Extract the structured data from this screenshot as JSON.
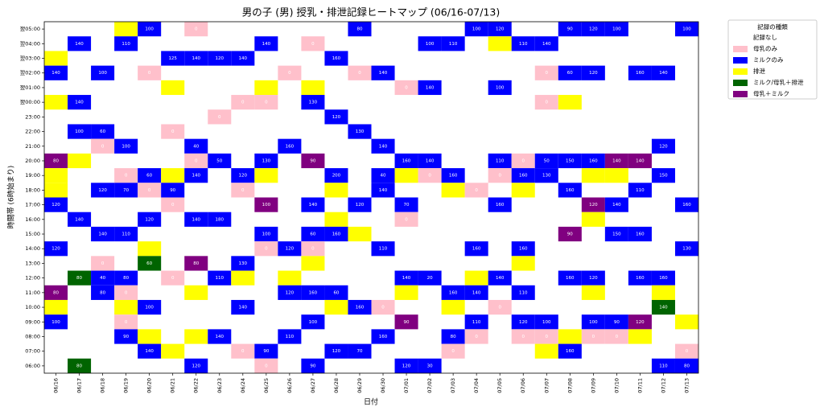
{
  "chart_data": {
    "type": "heatmap",
    "title": "男の子 (男) 授乳・排泄記録ヒートマップ (06/16-07/13)",
    "x_label": "日付",
    "y_label": "時間帯 (6時始まり)",
    "categories": [
      "06/16",
      "06/17",
      "06/18",
      "06/19",
      "06/20",
      "06/21",
      "06/22",
      "06/23",
      "06/24",
      "06/25",
      "06/26",
      "06/27",
      "06/28",
      "06/29",
      "06/30",
      "07/01",
      "07/02",
      "07/03",
      "07/04",
      "07/05",
      "07/06",
      "07/07",
      "07/08",
      "07/09",
      "07/10",
      "07/11",
      "07/12",
      "07/13"
    ],
    "rows": [
      "翌05:00",
      "翌04:00",
      "翌03:00",
      "翌02:00",
      "翌01:00",
      "翌00:00",
      "23:00",
      "22:00",
      "21:00",
      "20:00",
      "19:00",
      "18:00",
      "17:00",
      "16:00",
      "15:00",
      "14:00",
      "13:00",
      "12:00",
      "11:00",
      "10:00",
      "09:00",
      "08:00",
      "07:00",
      "06:00"
    ],
    "legend_title": "記録の種類",
    "legend": [
      {
        "name": "記録なし",
        "color": "#ffffff"
      },
      {
        "name": "母乳のみ",
        "color": "#ffc0cb"
      },
      {
        "name": "ミルクのみ",
        "color": "#0000ff"
      },
      {
        "name": "排泄",
        "color": "#ffff00"
      },
      {
        "name": "ミルク/母乳＋排泄",
        "color": "#006400"
      },
      {
        "name": "母乳＋ミルク",
        "color": "#800080"
      }
    ],
    "kinds": [
      [
        0,
        0,
        0,
        3,
        2,
        0,
        1,
        0,
        0,
        0,
        0,
        0,
        0,
        2,
        0,
        0,
        0,
        0,
        2,
        2,
        0,
        0,
        2,
        2,
        2,
        0,
        0,
        2
      ],
      [
        0,
        2,
        0,
        2,
        0,
        0,
        0,
        0,
        0,
        2,
        0,
        1,
        0,
        0,
        0,
        0,
        2,
        2,
        0,
        3,
        2,
        2,
        0,
        0,
        0,
        0,
        0,
        0
      ],
      [
        3,
        0,
        0,
        0,
        0,
        2,
        2,
        2,
        2,
        0,
        0,
        0,
        2,
        0,
        0,
        0,
        0,
        0,
        0,
        0,
        0,
        0,
        0,
        0,
        0,
        0,
        0,
        0
      ],
      [
        2,
        0,
        2,
        0,
        1,
        0,
        0,
        0,
        0,
        0,
        1,
        0,
        0,
        1,
        2,
        0,
        0,
        0,
        0,
        0,
        0,
        1,
        2,
        2,
        0,
        2,
        2,
        0
      ],
      [
        0,
        0,
        0,
        0,
        0,
        3,
        0,
        0,
        0,
        3,
        0,
        3,
        0,
        0,
        0,
        1,
        2,
        0,
        0,
        2,
        0,
        0,
        0,
        0,
        0,
        0,
        0,
        0
      ],
      [
        3,
        2,
        0,
        0,
        0,
        0,
        0,
        0,
        1,
        1,
        0,
        2,
        0,
        0,
        0,
        0,
        0,
        0,
        0,
        0,
        0,
        1,
        3,
        0,
        0,
        0,
        0,
        0
      ],
      [
        0,
        0,
        0,
        0,
        0,
        0,
        0,
        1,
        0,
        0,
        0,
        0,
        2,
        0,
        0,
        0,
        0,
        0,
        0,
        0,
        0,
        0,
        0,
        0,
        0,
        0,
        0,
        0
      ],
      [
        0,
        2,
        2,
        0,
        0,
        1,
        0,
        0,
        0,
        0,
        0,
        0,
        0,
        2,
        0,
        0,
        0,
        0,
        0,
        0,
        0,
        0,
        0,
        0,
        0,
        0,
        0,
        0
      ],
      [
        0,
        0,
        1,
        2,
        0,
        0,
        2,
        0,
        0,
        0,
        2,
        0,
        0,
        0,
        2,
        0,
        0,
        0,
        0,
        0,
        0,
        0,
        0,
        0,
        0,
        0,
        2,
        0
      ],
      [
        5,
        3,
        0,
        0,
        0,
        0,
        1,
        2,
        0,
        2,
        0,
        5,
        0,
        0,
        0,
        2,
        2,
        0,
        0,
        2,
        1,
        2,
        2,
        2,
        5,
        5,
        0,
        0
      ],
      [
        3,
        0,
        0,
        1,
        2,
        3,
        2,
        0,
        2,
        3,
        0,
        0,
        2,
        0,
        2,
        3,
        1,
        2,
        0,
        1,
        2,
        2,
        0,
        3,
        3,
        0,
        2,
        0
      ],
      [
        3,
        0,
        2,
        2,
        1,
        2,
        0,
        0,
        1,
        0,
        0,
        0,
        3,
        0,
        2,
        0,
        0,
        3,
        1,
        0,
        3,
        0,
        2,
        0,
        0,
        2,
        0,
        0
      ],
      [
        2,
        0,
        0,
        0,
        0,
        1,
        0,
        0,
        0,
        5,
        0,
        2,
        0,
        2,
        0,
        2,
        0,
        0,
        0,
        2,
        0,
        0,
        0,
        5,
        2,
        0,
        0,
        2
      ],
      [
        0,
        2,
        0,
        0,
        2,
        0,
        2,
        2,
        0,
        0,
        0,
        0,
        3,
        0,
        0,
        1,
        0,
        0,
        0,
        0,
        0,
        0,
        0,
        3,
        0,
        0,
        0,
        0
      ],
      [
        0,
        0,
        2,
        2,
        0,
        0,
        0,
        0,
        0,
        2,
        0,
        2,
        2,
        3,
        0,
        0,
        0,
        0,
        0,
        0,
        0,
        0,
        5,
        0,
        2,
        2,
        0,
        0
      ],
      [
        2,
        0,
        0,
        0,
        3,
        0,
        0,
        0,
        0,
        1,
        2,
        1,
        0,
        0,
        2,
        0,
        0,
        0,
        2,
        0,
        2,
        0,
        0,
        0,
        0,
        0,
        0,
        2
      ],
      [
        0,
        0,
        1,
        0,
        4,
        0,
        5,
        0,
        2,
        0,
        0,
        3,
        0,
        0,
        0,
        0,
        0,
        0,
        0,
        0,
        3,
        0,
        0,
        0,
        0,
        0,
        0,
        0
      ],
      [
        0,
        4,
        2,
        2,
        0,
        1,
        0,
        2,
        3,
        0,
        3,
        0,
        0,
        0,
        0,
        2,
        2,
        0,
        3,
        2,
        0,
        0,
        2,
        2,
        0,
        2,
        2,
        0
      ],
      [
        5,
        0,
        2,
        1,
        0,
        0,
        3,
        0,
        0,
        0,
        2,
        2,
        2,
        0,
        0,
        3,
        0,
        2,
        2,
        0,
        2,
        0,
        0,
        3,
        0,
        0,
        3,
        0
      ],
      [
        3,
        0,
        0,
        3,
        2,
        0,
        0,
        0,
        2,
        0,
        0,
        0,
        3,
        2,
        1,
        0,
        0,
        3,
        0,
        1,
        0,
        0,
        0,
        0,
        0,
        0,
        4,
        0
      ],
      [
        2,
        0,
        0,
        1,
        0,
        0,
        0,
        0,
        0,
        0,
        0,
        2,
        0,
        0,
        0,
        5,
        0,
        0,
        2,
        0,
        2,
        2,
        0,
        2,
        2,
        5,
        0,
        3
      ],
      [
        0,
        0,
        0,
        2,
        3,
        0,
        3,
        2,
        0,
        0,
        2,
        0,
        0,
        0,
        2,
        0,
        0,
        2,
        1,
        0,
        1,
        1,
        3,
        1,
        1,
        3,
        0,
        0
      ],
      [
        0,
        0,
        0,
        0,
        2,
        3,
        0,
        0,
        1,
        2,
        0,
        0,
        2,
        2,
        0,
        0,
        0,
        1,
        0,
        0,
        0,
        3,
        2,
        0,
        0,
        0,
        0,
        1
      ],
      [
        0,
        4,
        0,
        0,
        0,
        0,
        2,
        0,
        0,
        1,
        0,
        2,
        0,
        0,
        0,
        2,
        2,
        0,
        0,
        0,
        0,
        0,
        0,
        0,
        0,
        0,
        2,
        2
      ]
    ],
    "values": [
      [
        null,
        null,
        null,
        null,
        100,
        null,
        0,
        null,
        null,
        null,
        null,
        null,
        null,
        80,
        null,
        null,
        null,
        null,
        100,
        120,
        null,
        null,
        90,
        120,
        100,
        null,
        null,
        100
      ],
      [
        null,
        140,
        null,
        110,
        null,
        null,
        null,
        null,
        null,
        140,
        null,
        0,
        null,
        null,
        null,
        null,
        100,
        110,
        null,
        null,
        110,
        140,
        null,
        null,
        null,
        null,
        null,
        null
      ],
      [
        null,
        null,
        null,
        null,
        null,
        125,
        140,
        120,
        140,
        null,
        null,
        null,
        160,
        null,
        null,
        null,
        null,
        null,
        null,
        null,
        null,
        null,
        null,
        null,
        null,
        null,
        null,
        null
      ],
      [
        140,
        null,
        100,
        null,
        0,
        null,
        null,
        null,
        null,
        null,
        0,
        null,
        null,
        0,
        140,
        null,
        null,
        null,
        null,
        null,
        null,
        0,
        60,
        120,
        null,
        160,
        140,
        null
      ],
      [
        null,
        null,
        null,
        null,
        null,
        null,
        null,
        null,
        null,
        null,
        null,
        null,
        null,
        null,
        null,
        0,
        140,
        null,
        null,
        100,
        null,
        null,
        null,
        null,
        null,
        null,
        null,
        null
      ],
      [
        null,
        140,
        null,
        null,
        null,
        null,
        null,
        null,
        0,
        0,
        null,
        130,
        null,
        null,
        null,
        null,
        null,
        null,
        null,
        null,
        null,
        0,
        null,
        null,
        null,
        null,
        null,
        null
      ],
      [
        null,
        null,
        null,
        null,
        null,
        null,
        null,
        0,
        null,
        null,
        null,
        null,
        120,
        null,
        null,
        null,
        null,
        null,
        null,
        null,
        null,
        null,
        null,
        null,
        null,
        null,
        null,
        null
      ],
      [
        null,
        100,
        60,
        null,
        null,
        0,
        null,
        null,
        null,
        null,
        null,
        null,
        null,
        130,
        null,
        null,
        null,
        null,
        null,
        null,
        null,
        null,
        null,
        null,
        null,
        null,
        null,
        null
      ],
      [
        null,
        null,
        0,
        100,
        null,
        null,
        40,
        null,
        null,
        null,
        160,
        null,
        null,
        null,
        140,
        null,
        null,
        null,
        null,
        null,
        null,
        null,
        null,
        null,
        null,
        null,
        120,
        null
      ],
      [
        80,
        null,
        null,
        null,
        null,
        null,
        0,
        50,
        null,
        130,
        null,
        90,
        null,
        null,
        null,
        160,
        140,
        null,
        null,
        110,
        0,
        50,
        150,
        160,
        140,
        140,
        null,
        null
      ],
      [
        null,
        null,
        null,
        0,
        60,
        null,
        140,
        null,
        120,
        null,
        null,
        null,
        200,
        null,
        40,
        null,
        0,
        160,
        null,
        0,
        160,
        130,
        null,
        null,
        null,
        null,
        150,
        null
      ],
      [
        null,
        null,
        120,
        70,
        0,
        90,
        null,
        null,
        0,
        null,
        null,
        null,
        null,
        null,
        140,
        null,
        null,
        null,
        0,
        null,
        null,
        null,
        160,
        null,
        null,
        110,
        null,
        null
      ],
      [
        120,
        null,
        null,
        null,
        null,
        0,
        null,
        null,
        null,
        100,
        null,
        140,
        null,
        120,
        null,
        70,
        null,
        null,
        null,
        160,
        null,
        null,
        null,
        120,
        140,
        null,
        null,
        160
      ],
      [
        null,
        140,
        null,
        null,
        120,
        null,
        140,
        180,
        null,
        null,
        null,
        null,
        null,
        null,
        null,
        0,
        null,
        null,
        null,
        null,
        null,
        null,
        null,
        null,
        null,
        null,
        null,
        null
      ],
      [
        null,
        null,
        140,
        110,
        null,
        null,
        null,
        null,
        null,
        100,
        null,
        60,
        160,
        null,
        null,
        null,
        null,
        null,
        null,
        null,
        null,
        null,
        90,
        null,
        150,
        160,
        null,
        null
      ],
      [
        120,
        null,
        null,
        null,
        null,
        null,
        null,
        null,
        null,
        0,
        120,
        0,
        null,
        null,
        110,
        null,
        null,
        null,
        160,
        null,
        160,
        null,
        null,
        null,
        null,
        null,
        null,
        130
      ],
      [
        null,
        null,
        0,
        null,
        60,
        null,
        80,
        null,
        130,
        null,
        null,
        null,
        null,
        null,
        null,
        null,
        null,
        null,
        null,
        null,
        null,
        null,
        null,
        null,
        null,
        null,
        null,
        null
      ],
      [
        null,
        80,
        40,
        80,
        null,
        0,
        null,
        110,
        null,
        null,
        null,
        null,
        null,
        null,
        null,
        140,
        20,
        null,
        null,
        140,
        null,
        null,
        160,
        120,
        null,
        160,
        160,
        null
      ],
      [
        80,
        null,
        80,
        0,
        null,
        null,
        null,
        null,
        null,
        null,
        120,
        160,
        60,
        null,
        null,
        null,
        null,
        160,
        140,
        null,
        110,
        null,
        null,
        null,
        null,
        null,
        null,
        null
      ],
      [
        null,
        null,
        null,
        null,
        100,
        null,
        null,
        null,
        140,
        null,
        null,
        null,
        null,
        160,
        0,
        null,
        null,
        null,
        null,
        0,
        null,
        null,
        null,
        null,
        null,
        null,
        140,
        null
      ],
      [
        100,
        null,
        null,
        0,
        null,
        null,
        null,
        null,
        null,
        null,
        null,
        100,
        null,
        null,
        null,
        90,
        null,
        null,
        110,
        null,
        120,
        100,
        null,
        100,
        90,
        120,
        null,
        null
      ],
      [
        null,
        null,
        null,
        90,
        null,
        null,
        null,
        140,
        null,
        null,
        110,
        null,
        null,
        null,
        160,
        null,
        null,
        80,
        0,
        null,
        0,
        0,
        null,
        0,
        0,
        null,
        null,
        null
      ],
      [
        null,
        null,
        null,
        null,
        140,
        null,
        null,
        null,
        0,
        90,
        null,
        null,
        120,
        70,
        null,
        null,
        null,
        0,
        null,
        null,
        null,
        null,
        160,
        null,
        null,
        null,
        null,
        0
      ],
      [
        null,
        80,
        null,
        null,
        null,
        null,
        120,
        null,
        null,
        0,
        null,
        90,
        null,
        null,
        null,
        120,
        30,
        null,
        null,
        null,
        null,
        null,
        null,
        null,
        null,
        null,
        110,
        80
      ]
    ]
  }
}
